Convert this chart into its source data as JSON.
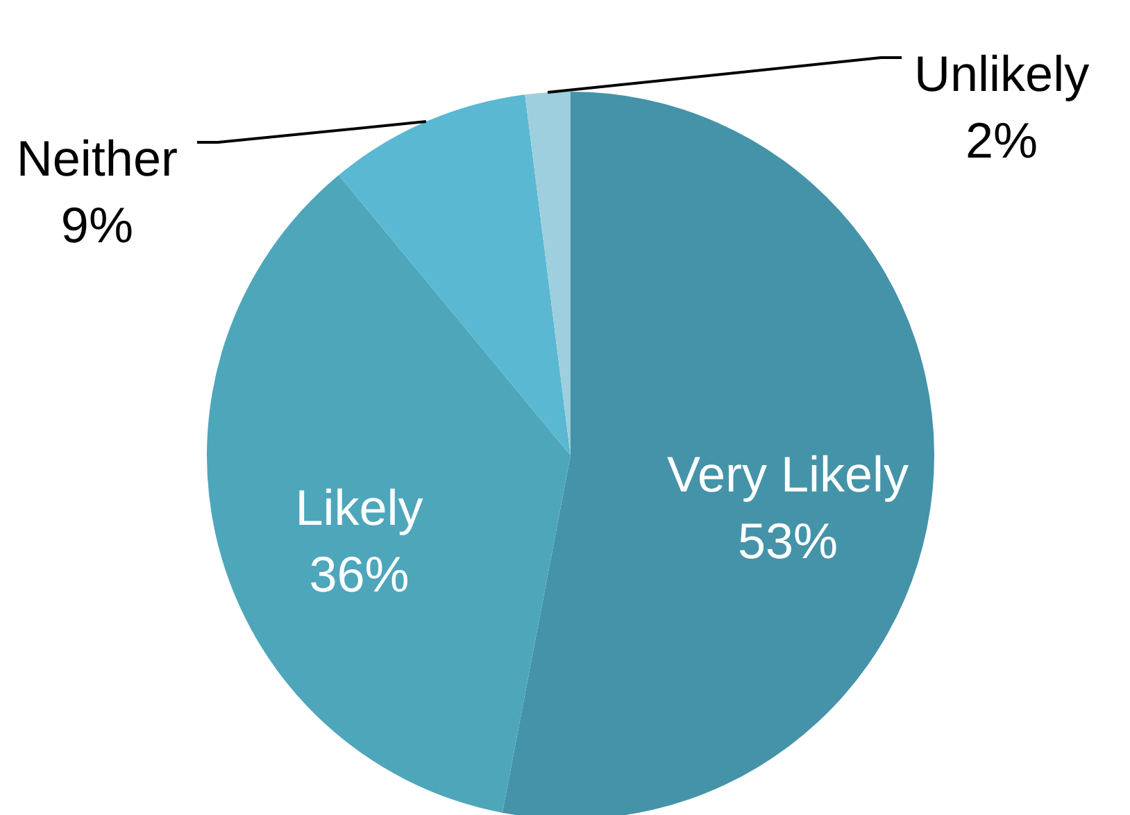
{
  "chart_data": {
    "type": "pie",
    "categories": [
      "Very Likely",
      "Likely",
      "Neither",
      "Unlikely"
    ],
    "values": [
      53,
      36,
      9,
      2
    ],
    "value_labels": [
      "53%",
      "36%",
      "9%",
      "2%"
    ],
    "colors": [
      "#4593a8",
      "#4ea6bb",
      "#5ab8d2",
      "#9ecfdf"
    ]
  }
}
